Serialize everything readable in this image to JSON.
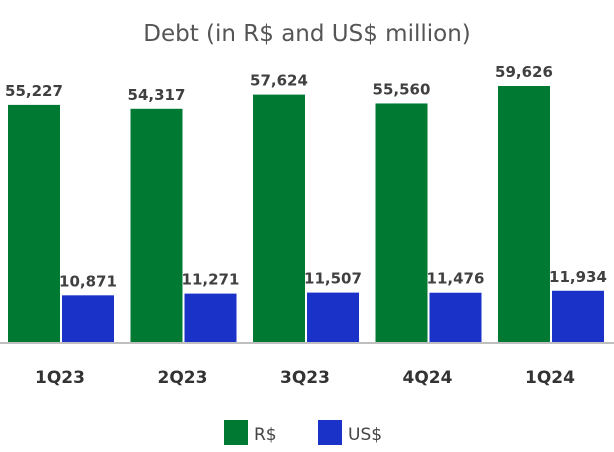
{
  "chart_data": {
    "type": "bar",
    "title": "Debt (in R$ and US$ million)",
    "categories": [
      "1Q23",
      "2Q23",
      "3Q23",
      "4Q24",
      "1Q24"
    ],
    "series": [
      {
        "name": "R$",
        "values": [
          55227,
          54317,
          57624,
          55560,
          59626
        ],
        "labels": [
          "55,227",
          "54,317",
          "57,624",
          "55,560",
          "59,626"
        ],
        "color": "#007a33"
      },
      {
        "name": "US$",
        "values": [
          10871,
          11271,
          11507,
          11476,
          11934
        ],
        "labels": [
          "10,871",
          "11,271",
          "11,507",
          "11,476",
          "11,934"
        ],
        "color": "#1a32c8"
      }
    ],
    "ylim": [
      0,
      60000
    ],
    "grid": false,
    "legend": "bottom"
  }
}
